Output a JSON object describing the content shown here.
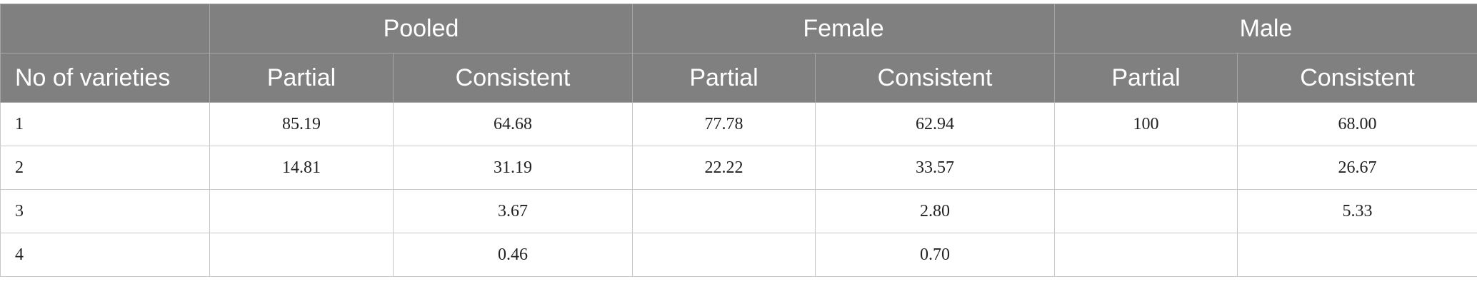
{
  "table": {
    "group_headers": [
      "Pooled",
      "Female",
      "Male"
    ],
    "columns": [
      "No of varieties",
      "Partial",
      "Consistent",
      "Partial",
      "Consistent",
      "Partial",
      "Consistent"
    ],
    "rows": [
      [
        "1",
        "85.19",
        "64.68",
        "77.78",
        "62.94",
        "100",
        "68.00"
      ],
      [
        "2",
        "14.81",
        "31.19",
        "22.22",
        "33.57",
        null,
        "26.67"
      ],
      [
        "3",
        null,
        "3.67",
        null,
        "2.80",
        null,
        "5.33"
      ],
      [
        "4",
        null,
        "0.46",
        null,
        "0.70",
        null,
        null
      ]
    ]
  }
}
